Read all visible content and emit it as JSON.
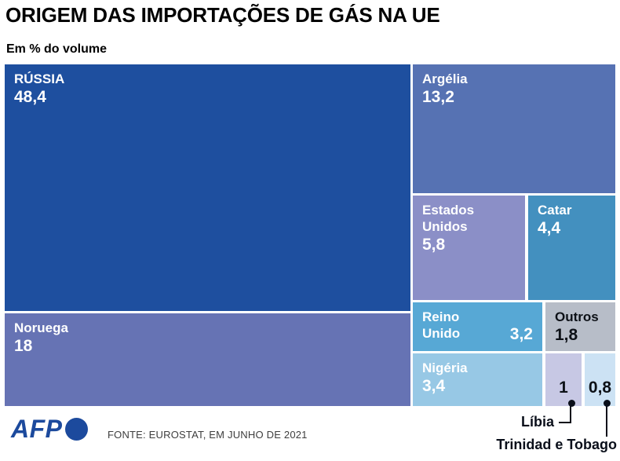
{
  "header": {
    "title": "ORIGEM DAS IMPORTAÇÕES DE GÁS NA UE",
    "subtitle": "Em % do volume"
  },
  "footer": {
    "logo_text": "AFP",
    "logo_color": "#1c4a9d",
    "source": "FONTE: EUROSTAT, EM JUNHO DE 2021"
  },
  "chart_data": {
    "type": "treemap",
    "title": "ORIGEM DAS IMPORTAÇÕES DE GÁS NA UE",
    "unit": "Em % do volume",
    "total": 100,
    "items": [
      {
        "id": "russia",
        "label": "RÚSSIA",
        "value": 48.4,
        "value_label": "48,4",
        "color": "#1e4f9f",
        "text_color": "#ffffff"
      },
      {
        "id": "noruega",
        "label": "Noruega",
        "value": 18,
        "value_label": "18",
        "color": "#6673b4",
        "text_color": "#ffffff"
      },
      {
        "id": "argelia",
        "label": "Argélia",
        "value": 13.2,
        "value_label": "13,2",
        "color": "#5672b3",
        "text_color": "#ffffff"
      },
      {
        "id": "estados_unidos",
        "label": "Estados Unidos",
        "value": 5.8,
        "value_label": "5,8",
        "color": "#8b8fc7",
        "text_color": "#ffffff"
      },
      {
        "id": "catar",
        "label": "Catar",
        "value": 4.4,
        "value_label": "4,4",
        "color": "#4390bf",
        "text_color": "#ffffff"
      },
      {
        "id": "reino_unido",
        "label": "Reino Unido",
        "value": 3.2,
        "value_label": "3,2",
        "color": "#57a8d5",
        "text_color": "#ffffff"
      },
      {
        "id": "outros",
        "label": "Outros",
        "value": 1.8,
        "value_label": "1,8",
        "color": "#b7bdc8",
        "text_color": "#0d1117"
      },
      {
        "id": "nigeria",
        "label": "Nigéria",
        "value": 3.4,
        "value_label": "3,4",
        "color": "#97c8e5",
        "text_color": "#ffffff"
      },
      {
        "id": "libia",
        "label": "Líbia",
        "value": 1,
        "value_label": "1",
        "color": "#c7c8e4",
        "text_color": "#0d1117",
        "label_outside": true
      },
      {
        "id": "trinidad",
        "label": "Trinidad e Tobago",
        "value": 0.8,
        "value_label": "0,8",
        "color": "#cce2f4",
        "text_color": "#0d1117",
        "label_outside": true
      }
    ]
  }
}
